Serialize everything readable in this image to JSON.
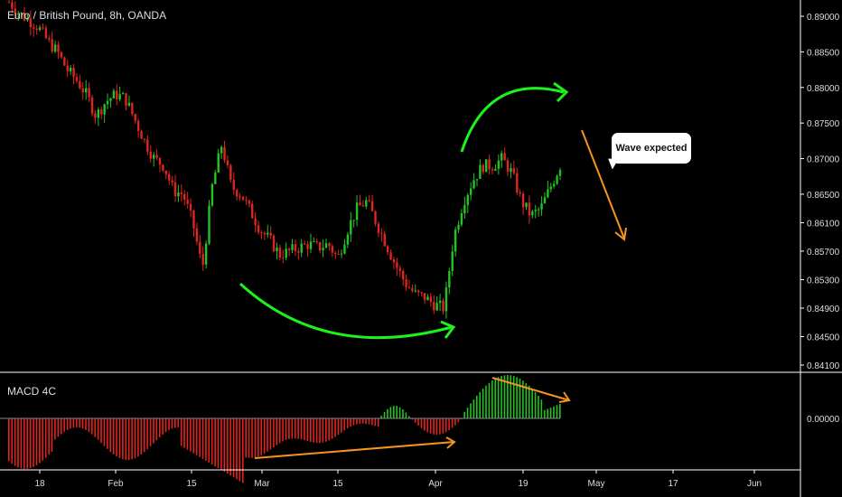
{
  "header": {
    "title": "Euro / British Pound, 8h, OANDA"
  },
  "macd_panel": {
    "label": "MACD 4C",
    "zero_label": "0.00000"
  },
  "annotation": {
    "text": "Wave expected"
  },
  "colors": {
    "up": "#22c322",
    "down": "#e0241e",
    "green_arrow": "#1cf21c",
    "orange_arrow": "#f7941d",
    "grid": "#ffffff"
  },
  "chart_data": [
    {
      "type": "candlestick",
      "title": "Euro / British Pound, 8h, OANDA",
      "y_ticks": [
        "0.89000",
        "0.88500",
        "0.88000",
        "0.87500",
        "0.87000",
        "0.86500",
        "0.86100",
        "0.85700",
        "0.85300",
        "0.84900",
        "0.84500",
        "0.84100"
      ],
      "x_ticks": [
        "18",
        "Feb",
        "15",
        "Mar",
        "15",
        "Apr",
        "19",
        "May",
        "17",
        "Jun"
      ],
      "close_path": [
        0.892,
        0.8905,
        0.8895,
        0.8885,
        0.8865,
        0.885,
        0.8825,
        0.881,
        0.879,
        0.876,
        0.878,
        0.879,
        0.8785,
        0.8755,
        0.8725,
        0.87,
        0.869,
        0.8655,
        0.865,
        0.861,
        0.8545,
        0.866,
        0.872,
        0.866,
        0.865,
        0.8625,
        0.86,
        0.8585,
        0.8565,
        0.857,
        0.8575,
        0.858,
        0.8575,
        0.858,
        0.856,
        0.86,
        0.863,
        0.864,
        0.861,
        0.858,
        0.855,
        0.8525,
        0.851,
        0.8505,
        0.8495,
        0.849,
        0.859,
        0.864,
        0.867,
        0.869,
        0.869,
        0.87,
        0.868,
        0.864,
        0.862,
        0.863,
        0.866,
        0.869
      ]
    },
    {
      "type": "bar",
      "title": "MACD 4C",
      "y_ticks": [
        "0.00000"
      ],
      "series_hint": "red bars below zero Jan–early Apr, green above zero mid-March bump and April–May hump"
    }
  ]
}
